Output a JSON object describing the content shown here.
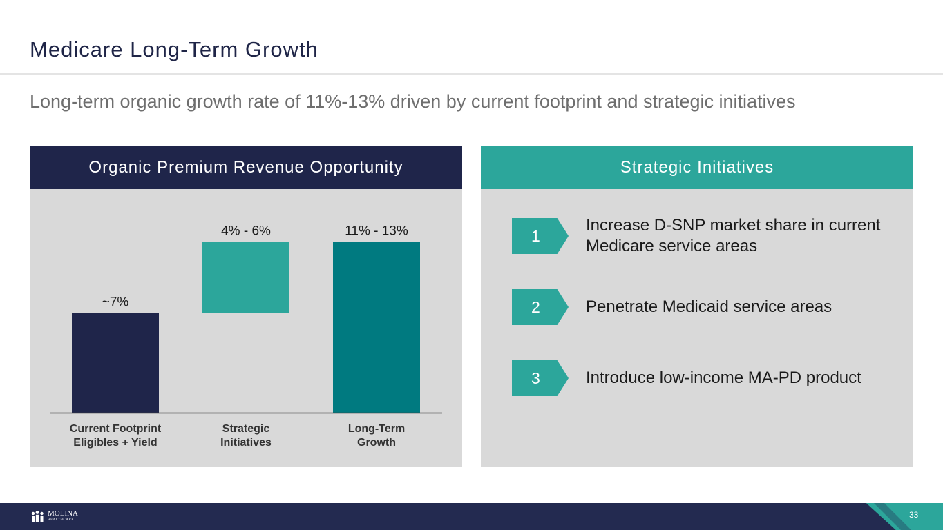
{
  "slide": {
    "title": "Medicare Long-Term Growth",
    "subtitle": "Long-term organic growth rate of 11%-13% driven by current footprint and strategic initiatives",
    "page_number": "33"
  },
  "left_panel": {
    "header": "Organic Premium Revenue Opportunity"
  },
  "right_panel": {
    "header": "Strategic Initiatives",
    "items": [
      {
        "number": "1",
        "text": "Increase D-SNP market share in current Medicare service areas"
      },
      {
        "number": "2",
        "text": "Penetrate Medicaid service areas"
      },
      {
        "number": "3",
        "text": "Introduce low-income MA-PD product"
      }
    ]
  },
  "footer": {
    "logo_name": "MOLINA",
    "logo_sub": "HEALTHCARE"
  },
  "colors": {
    "navy": "#1f254a",
    "teal": "#2ca69b",
    "dark_teal": "#007a80",
    "panel_bg": "#d9d9d9"
  },
  "chart_data": {
    "type": "bar",
    "subtype": "waterfall",
    "title": "Organic Premium Revenue Opportunity",
    "categories": [
      [
        "Current Footprint",
        "Eligibles + Yield"
      ],
      [
        "Strategic",
        "Initiatives"
      ],
      [
        "Long-Term",
        "Growth"
      ]
    ],
    "bars": [
      {
        "base": 0,
        "value": 7,
        "label": "~7%",
        "color": "#1f254a"
      },
      {
        "base": 7,
        "value": 12,
        "label": "4% -  6%",
        "color": "#2ca69b"
      },
      {
        "base": 0,
        "value": 12,
        "label": "11% - 13%",
        "color": "#007a80"
      }
    ],
    "ylim": [
      0,
      12.6
    ],
    "xlabel": "",
    "ylabel": "",
    "grid": false
  }
}
